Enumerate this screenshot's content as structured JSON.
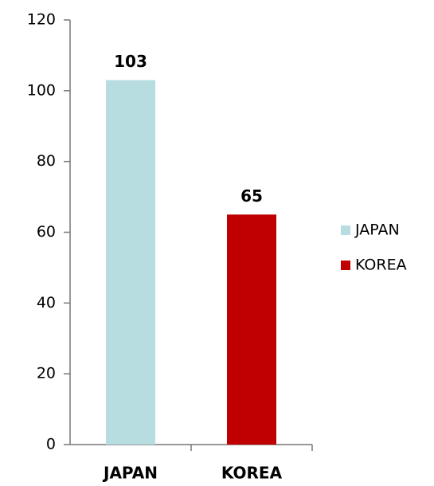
{
  "chart_data": {
    "type": "bar",
    "categories": [
      "JAPAN",
      "KOREA"
    ],
    "values": [
      103,
      65
    ],
    "colors": [
      "#b7dde1",
      "#c00000"
    ],
    "ylim": [
      0,
      120
    ],
    "yticks": [
      0,
      20,
      40,
      60,
      80,
      100,
      120
    ],
    "legend": "right",
    "data_labels": true
  }
}
